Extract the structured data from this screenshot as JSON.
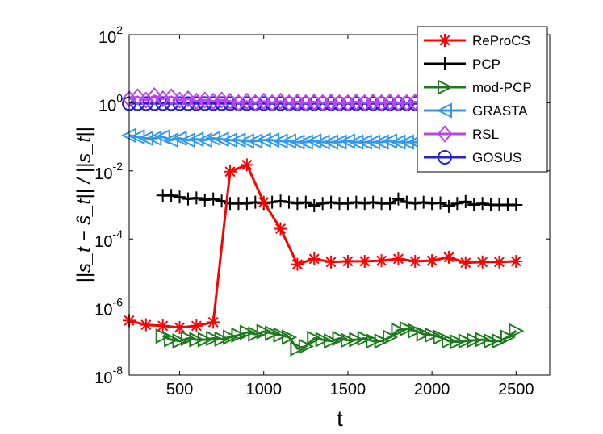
{
  "chart_data": {
    "type": "line",
    "title": "",
    "xlabel": "t",
    "ylabel": "||s_t − ŝ_t|| / ||s_t||",
    "yscale": "log",
    "xlim": [
      200,
      2700
    ],
    "ylim": [
      1e-08,
      100
    ],
    "x_ticks": [
      500,
      1000,
      1500,
      2000,
      2500
    ],
    "x_tick_labels": [
      "500",
      "1000",
      "1500",
      "2000",
      "2500"
    ],
    "y_ticks": [
      1e-08,
      1e-06,
      0.0001,
      0.01,
      1,
      100
    ],
    "y_tick_labels": [
      {
        "base": "10",
        "exp": "-8"
      },
      {
        "base": "10",
        "exp": "-6"
      },
      {
        "base": "10",
        "exp": "-4"
      },
      {
        "base": "10",
        "exp": "-2"
      },
      {
        "base": "10",
        "exp": "0"
      },
      {
        "base": "10",
        "exp": "2"
      }
    ],
    "legend_position": "top-right",
    "series": [
      {
        "name": "ReProCS",
        "color": "#ff0000",
        "marker": "asterisk",
        "x": [
          200,
          300,
          400,
          500,
          600,
          700,
          800,
          900,
          1000,
          1100,
          1200,
          1300,
          1400,
          1500,
          1600,
          1700,
          1800,
          1900,
          2000,
          2100,
          2200,
          2300,
          2400,
          2500
        ],
        "y": [
          4e-07,
          3e-07,
          2.8e-07,
          2.5e-07,
          2.8e-07,
          3.6e-07,
          0.0095,
          0.015,
          0.0012,
          0.0002,
          1.8e-05,
          2.6e-05,
          2.1e-05,
          2.2e-05,
          2.2e-05,
          2.3e-05,
          2.6e-05,
          2.2e-05,
          2.3e-05,
          2.9e-05,
          2e-05,
          2.1e-05,
          2.1e-05,
          2.2e-05
        ]
      },
      {
        "name": "PCP",
        "color": "#000000",
        "marker": "plus",
        "x": [
          400,
          450,
          500,
          550,
          600,
          650,
          700,
          750,
          800,
          850,
          900,
          950,
          1000,
          1050,
          1100,
          1150,
          1200,
          1250,
          1300,
          1350,
          1400,
          1450,
          1500,
          1550,
          1600,
          1650,
          1700,
          1750,
          1800,
          1850,
          1900,
          1950,
          2000,
          2050,
          2100,
          2150,
          2200,
          2250,
          2300,
          2350,
          2400,
          2450,
          2500
        ],
        "y": [
          0.0019,
          0.0019,
          0.0017,
          0.0015,
          0.0016,
          0.0014,
          0.0015,
          0.0013,
          0.0011,
          0.0011,
          0.0011,
          0.0012,
          0.0011,
          0.0012,
          0.0013,
          0.0012,
          0.0011,
          0.0012,
          0.00095,
          0.0011,
          0.0012,
          0.0011,
          0.0011,
          0.0012,
          0.0011,
          0.0012,
          0.0011,
          0.0011,
          0.0015,
          0.0012,
          0.0011,
          0.0012,
          0.0011,
          0.00115,
          0.0009,
          0.0011,
          0.00125,
          0.001,
          0.0011,
          0.001,
          0.001,
          0.001,
          0.001
        ]
      },
      {
        "name": "mod-PCP",
        "color": "#1e7a1e",
        "marker": "triangle-right",
        "x": [
          400,
          450,
          500,
          550,
          600,
          650,
          700,
          750,
          800,
          850,
          900,
          950,
          1000,
          1050,
          1100,
          1150,
          1200,
          1250,
          1300,
          1350,
          1400,
          1450,
          1500,
          1550,
          1600,
          1650,
          1700,
          1750,
          1800,
          1850,
          1900,
          1950,
          2000,
          2050,
          2100,
          2150,
          2200,
          2250,
          2300,
          2350,
          2400,
          2450,
          2500
        ],
        "y": [
          1.4e-07,
          1.1e-07,
          1e-07,
          1.2e-07,
          1.1e-07,
          1.1e-07,
          1.2e-07,
          1.15e-07,
          1.3e-07,
          1.5e-07,
          1.8e-07,
          1.6e-07,
          1.9e-07,
          1.7e-07,
          1.5e-07,
          1.3e-07,
          6e-08,
          7e-08,
          1.2e-07,
          1.1e-07,
          1e-07,
          1.2e-07,
          1.05e-07,
          1.1e-07,
          1.2e-07,
          1e-07,
          1e-07,
          1.3e-07,
          2.1e-07,
          2.3e-07,
          2e-07,
          1.6e-07,
          1.5e-07,
          1.3e-07,
          1e-07,
          9.5e-08,
          1e-07,
          1.05e-07,
          1.1e-07,
          1e-07,
          1e-07,
          1.3e-07,
          2e-07
        ]
      },
      {
        "name": "GRASTA",
        "color": "#3399ee",
        "marker": "triangle-left",
        "x": [
          200,
          250,
          300,
          350,
          400,
          450,
          500,
          550,
          600,
          650,
          700,
          750,
          800,
          850,
          900,
          950,
          1000,
          1050,
          1100,
          1150,
          1200,
          1250,
          1300,
          1350,
          1400,
          1450,
          1500,
          1550,
          1600,
          1650,
          1700,
          1750,
          1800,
          1850,
          1900,
          1950,
          2000,
          2050
        ],
        "y": [
          0.11,
          0.1,
          0.09,
          0.09,
          0.1,
          0.08,
          0.09,
          0.08,
          0.085,
          0.08,
          0.09,
          0.085,
          0.08,
          0.08,
          0.075,
          0.075,
          0.08,
          0.08,
          0.075,
          0.075,
          0.07,
          0.07,
          0.075,
          0.07,
          0.07,
          0.07,
          0.075,
          0.07,
          0.07,
          0.07,
          0.07,
          0.075,
          0.07,
          0.07,
          0.07,
          0.07,
          0.07,
          0.075
        ]
      },
      {
        "name": "RSL",
        "color": "#bb44ee",
        "marker": "diamond",
        "x": [
          200,
          250,
          300,
          350,
          400,
          450,
          500,
          550,
          600,
          650,
          700,
          750,
          800,
          850,
          900,
          950,
          1000,
          1050,
          1100,
          1150,
          1200,
          1250,
          1300,
          1350,
          1400,
          1450,
          1500,
          1550,
          1600,
          1650,
          1700,
          1750,
          1800,
          1850,
          1900,
          1950,
          2000,
          2050
        ],
        "y": [
          1.3,
          1.5,
          1.2,
          1.6,
          1.3,
          1.5,
          1.2,
          1.3,
          1.1,
          1.2,
          1.1,
          1.2,
          1.1,
          1.0,
          1.1,
          1.0,
          1.1,
          1.0,
          1.1,
          1.0,
          1.05,
          1.0,
          1.05,
          1.0,
          1.05,
          1.0,
          1.0,
          1.05,
          1.0,
          1.05,
          1.0,
          1.05,
          1.0,
          1.0,
          1.05,
          1.0,
          1.0,
          1.0
        ]
      },
      {
        "name": "GOSUS",
        "color": "#2222dd",
        "marker": "circle",
        "x": [
          200,
          250,
          300,
          350,
          400,
          450,
          500,
          550,
          600,
          650,
          700,
          750,
          800,
          850,
          900,
          950,
          1000,
          1050,
          1100,
          1150,
          1200,
          1250,
          1300,
          1350,
          1400,
          1450,
          1500,
          1550,
          1600,
          1650,
          1700,
          1750,
          1800,
          1850,
          1900,
          1950,
          2000,
          2050
        ],
        "y": [
          0.95,
          0.95,
          0.95,
          0.95,
          0.95,
          0.95,
          0.95,
          0.95,
          0.95,
          0.95,
          0.95,
          0.95,
          0.95,
          0.95,
          0.95,
          0.95,
          0.95,
          0.95,
          0.95,
          0.95,
          0.95,
          0.95,
          0.95,
          0.95,
          0.95,
          0.95,
          0.95,
          0.95,
          0.95,
          0.95,
          0.95,
          0.95,
          0.95,
          0.95,
          0.95,
          0.95,
          0.95,
          0.95
        ]
      }
    ]
  }
}
